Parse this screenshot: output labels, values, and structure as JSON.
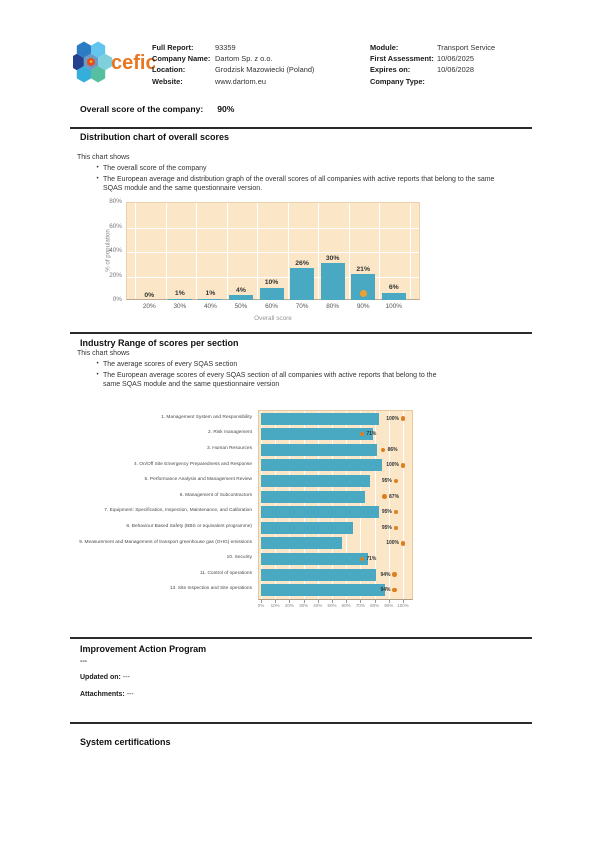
{
  "logo": {
    "text": "cefic"
  },
  "header": {
    "left_fields": [
      {
        "label": "Full Report:",
        "value": "93359"
      },
      {
        "label": "Company Name:",
        "value": "Dartom Sp. z o.o."
      },
      {
        "label": "Location:",
        "value": "Grodzisk Mazowiecki (Poland)"
      },
      {
        "label": "Website:",
        "value": "www.dartom.eu"
      }
    ],
    "right_fields": [
      {
        "label": "Module:",
        "value": "Transport Service"
      },
      {
        "label": "First Assessment:",
        "value": "10/06/2025"
      },
      {
        "label": "Expires on:",
        "value": "10/06/2028"
      },
      {
        "label": "Company Type:",
        "value": ""
      }
    ]
  },
  "overall": {
    "label": "Overall score of the company:",
    "value": "90%"
  },
  "sections": {
    "distribution": {
      "title": "Distribution chart of overall scores",
      "intro": "This chart shows",
      "bullets": [
        "The overall score of the company",
        "The European average and distribution graph of the overall scores of all companies with active reports that belong to the same SQAS module and the same questionnaire version."
      ]
    },
    "industry": {
      "title": "Industry Range of scores per section",
      "intro": "This chart shows",
      "bullets": [
        "The average scores of every SQAS section",
        "The European average scores of every SQAS section of all companies with active reports that belong to the same SQAS module and the same questionnaire version"
      ]
    },
    "improvement": {
      "title": "Improvement Action Program",
      "content": "---",
      "updated_label": "Updated on:",
      "updated_value": "---",
      "attachments_label": "Attachments:",
      "attachments_value": "---"
    },
    "certifications": {
      "title": "System certifications"
    }
  },
  "colors": {
    "bar_teal": "#4AA9C2",
    "chart_background": "#FBE6C8",
    "marker_orange": "#F0A030",
    "dot_orange": "#DE7F1E",
    "logo_text_orange": "#E87722"
  },
  "chart_data": [
    {
      "type": "bar",
      "title": "Distribution chart of overall scores",
      "categories": [
        "20%",
        "30%",
        "40%",
        "50%",
        "60%",
        "70%",
        "80%",
        "90%",
        "100%"
      ],
      "values": [
        0,
        1,
        1,
        4,
        10,
        26,
        30,
        21,
        6
      ],
      "value_labels": [
        "0%",
        "1%",
        "1%",
        "4%",
        "10%",
        "26%",
        "30%",
        "21%",
        "6%"
      ],
      "xlabel": "Overall score",
      "ylabel": "% of population",
      "ylim": [
        0,
        80
      ],
      "yticks": [
        "0%",
        "20%",
        "40%",
        "60%",
        "80%"
      ],
      "grid": true,
      "legend_position": "none",
      "company_marker": {
        "category": "90%",
        "value": 90
      }
    },
    {
      "type": "bar",
      "orientation": "horizontal",
      "title": "Industry Range of scores per section",
      "xlim": [
        0,
        100
      ],
      "xticks": [
        "0%",
        "10%",
        "20%",
        "30%",
        "40%",
        "50%",
        "60%",
        "70%",
        "80%",
        "90%",
        "100%"
      ],
      "grid": true,
      "legend_position": "none",
      "series_meaning": {
        "bars": "European average score",
        "dots": "Company score"
      },
      "rows": [
        {
          "label": "1. Management System and Responsibility",
          "europe_avg": 83,
          "company_score": 100,
          "label_side": "left"
        },
        {
          "label": "2. Risk management",
          "europe_avg": 79,
          "company_score": 71,
          "label_side": "right"
        },
        {
          "label": "3. Human Resources",
          "europe_avg": 82,
          "company_score": 86,
          "label_side": "right"
        },
        {
          "label": "4. On/Off Site Emergency Preparedness and Response",
          "europe_avg": 85,
          "company_score": 100,
          "label_side": "left"
        },
        {
          "label": "5. Performance Analysis and Management Review",
          "europe_avg": 77,
          "company_score": 95,
          "label_side": "left"
        },
        {
          "label": "6. Management of Subcontractors",
          "europe_avg": 73,
          "company_score": 87,
          "label_side": "right"
        },
        {
          "label": "7. Equipment: Specification, Inspection, Maintenance, and Calibration",
          "europe_avg": 83,
          "company_score": 95,
          "label_side": "left"
        },
        {
          "label": "8. Behaviour Based Safety (BBS or equivalent programme)",
          "europe_avg": 65,
          "company_score": 95,
          "label_side": "left"
        },
        {
          "label": "9. Measurement and Management of transport greenhouse gas (GHG) emissions",
          "europe_avg": 57,
          "company_score": 100,
          "label_side": "left"
        },
        {
          "label": "10. Security",
          "europe_avg": 75,
          "company_score": 71,
          "label_side": "right"
        },
        {
          "label": "11. Control of operations",
          "europe_avg": 81,
          "company_score": 94,
          "label_side": "left"
        },
        {
          "label": "13. Site Inspection and Site operations",
          "europe_avg": 87,
          "company_score": 94,
          "label_side": "left"
        }
      ]
    }
  ]
}
